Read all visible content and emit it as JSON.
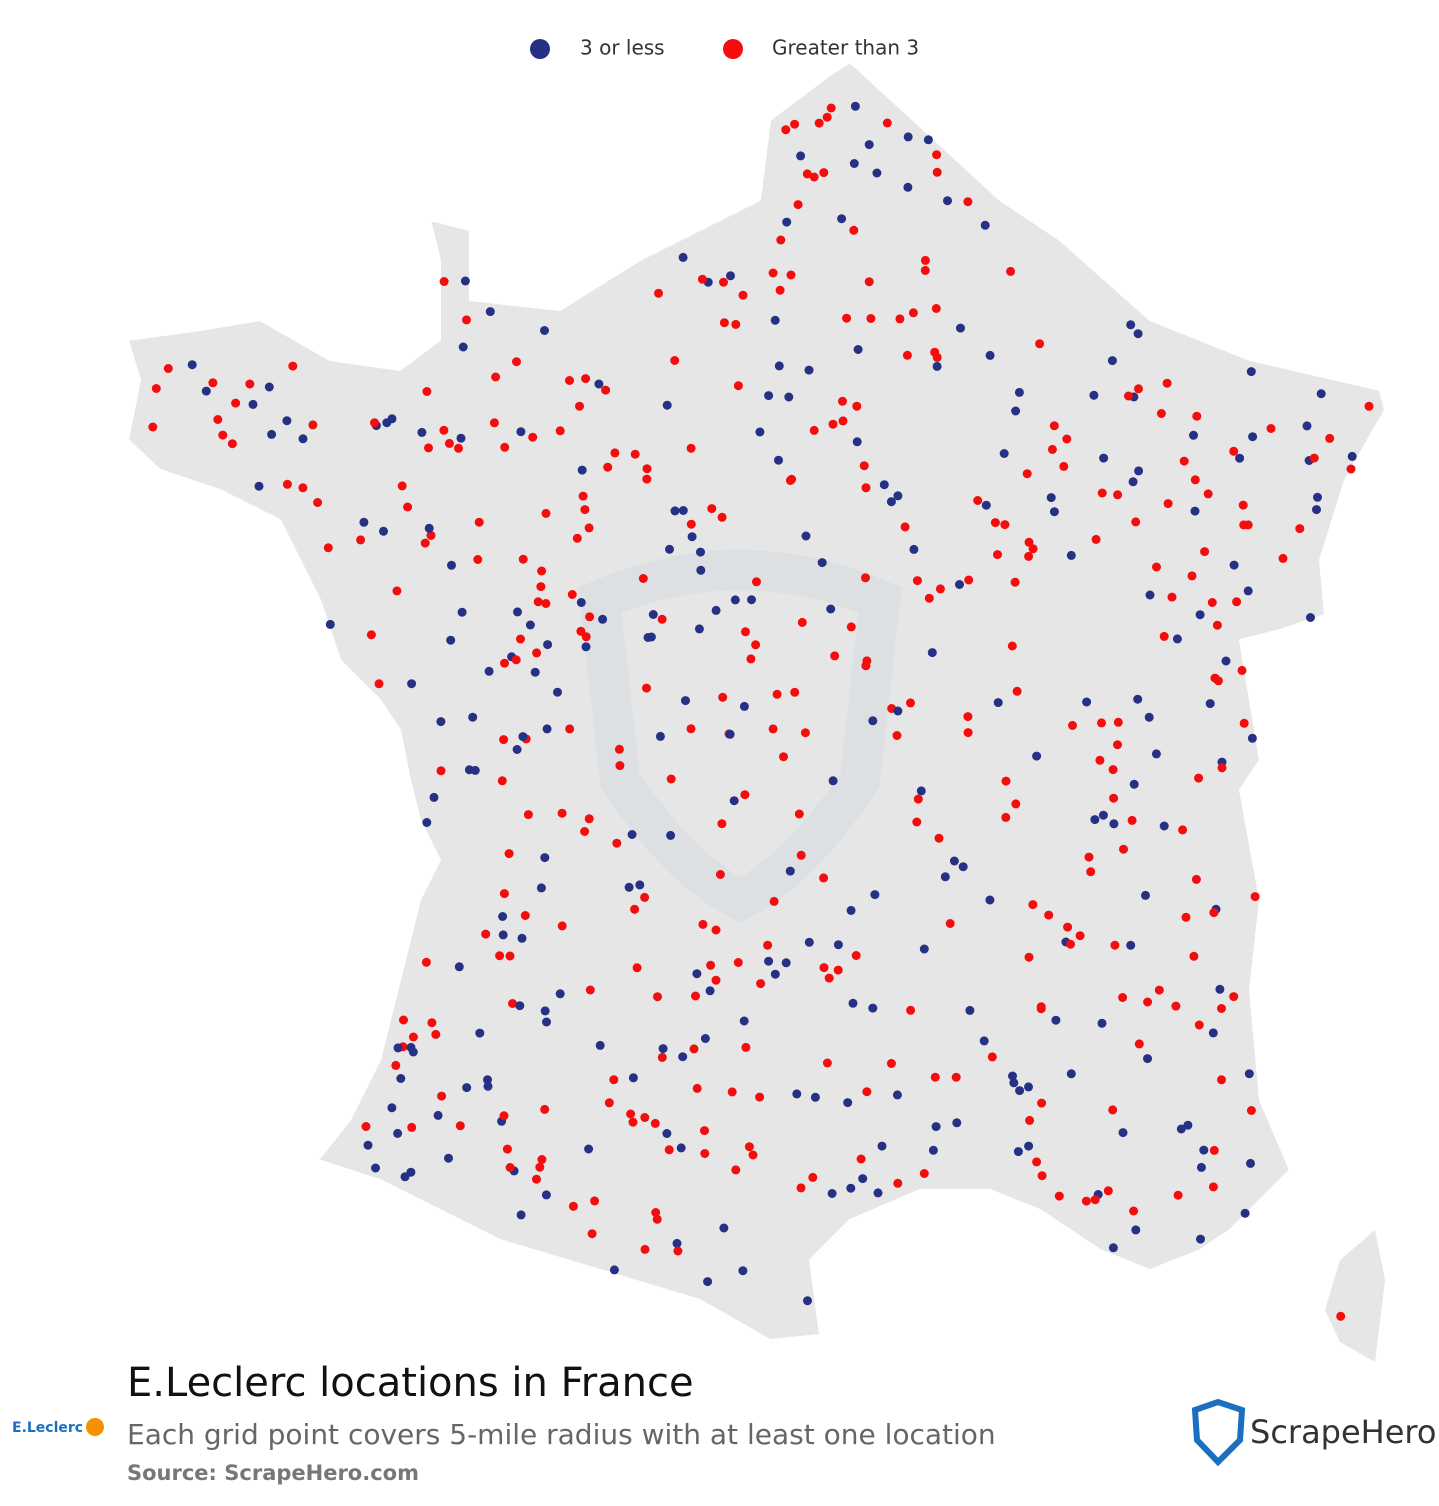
{
  "legend": [
    {
      "name": "3 or less",
      "color": "#253184"
    },
    {
      "name": "Greater than 3",
      "color": "#f50d0d"
    }
  ],
  "title": "E.Leclerc locations in France",
  "subtitle": "Each grid point covers 5-mile radius with at least one location",
  "source": "Source: ScrapeHero.com",
  "brand_logo": "E.Leclerc",
  "publisher": "ScrapeHero"
}
